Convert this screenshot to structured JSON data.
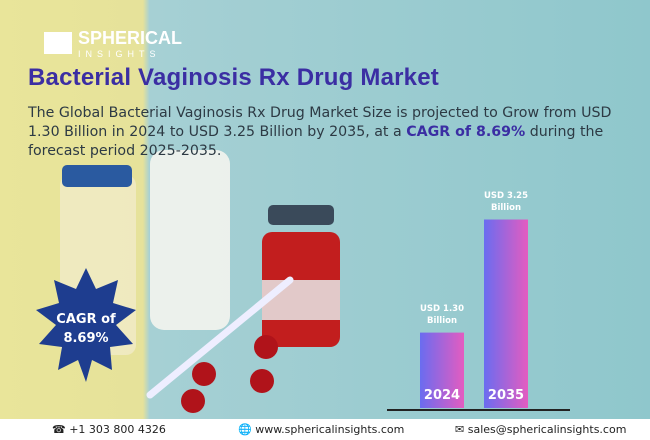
{
  "header": {
    "logo": "SPHERICAL",
    "logo_sub": "INSIGHTS"
  },
  "title": "Bacterial Vaginosis Rx Drug Market",
  "description": [
    "The Global Bacterial Vaginosis Rx Drug Market Size is projected to Grow from USD 1.30 Billion in 2024 to USD 3.25 Billion by 2035, at a ",
    "CAGR of 8.69%",
    " during the forecast period 2025-2035."
  ],
  "badge": [
    "CAGR of",
    "8.69%"
  ],
  "chart_data": {
    "type": "bar",
    "categories": [
      "2024",
      "2035"
    ],
    "values": [
      1.3,
      3.25
    ],
    "value_labels": [
      "USD 1.30 Billion",
      "USD 3.25 Billion"
    ],
    "colors": [
      "#6a6cf0",
      "#e45cc0"
    ]
  },
  "footer": {
    "phone": "+1 303 800 4326",
    "website": "www.sphericalinsights.com",
    "email": "sales@sphericalinsights.com"
  }
}
